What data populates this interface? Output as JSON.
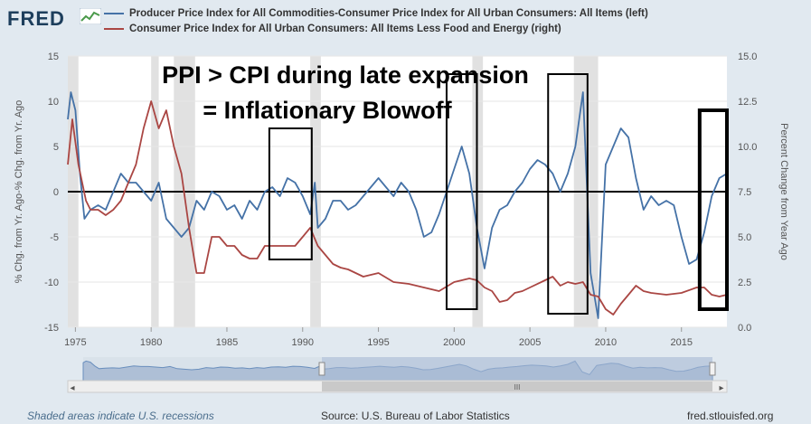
{
  "header": {
    "logo": "FRED",
    "logo_icon": "sparkline-icon"
  },
  "legend": [
    {
      "label": "Producer Price Index for All Commodities-Consumer Price Index for All Urban Consumers: All Items (left)",
      "color": "#4572a7"
    },
    {
      "label": "Consumer Price Index for All Urban Consumers: All Items Less Food and Energy (right)",
      "color": "#aa4643"
    }
  ],
  "annotation": {
    "line1": "PPI > CPI during late expansion",
    "line2": "= Inflationary Blowoff"
  },
  "navigator": {
    "left_arrow": "◂",
    "right_arrow": "▸",
    "grip": "III"
  },
  "footer": {
    "note": "Shaded areas indicate U.S. recessions",
    "source": "Source: U.S. Bureau of Labor Statistics",
    "site": "fred.stlouisfed.org"
  },
  "chart_data": {
    "type": "line",
    "ylabel": "% Chg. from Yr. Ago-% Chg. from Yr. Ago",
    "y2label": "Percent Change from Year Ago",
    "xlim": [
      1974.5,
      2018.0
    ],
    "ylim": [
      -15,
      15
    ],
    "y2lim": [
      0,
      15
    ],
    "x_ticks": [
      "1975",
      "1980",
      "1985",
      "1990",
      "1995",
      "2000",
      "2005",
      "2010",
      "2015"
    ],
    "y_ticks": [
      "15",
      "10",
      "5",
      "0",
      "-5",
      "-10",
      "-15"
    ],
    "y2_ticks": [
      "15.0",
      "12.5",
      "10.0",
      "7.5",
      "5.0",
      "2.5",
      "0.0"
    ],
    "recessions": [
      [
        1974.0,
        1975.2
      ],
      [
        1980.0,
        1980.5
      ],
      [
        1981.5,
        1982.9
      ],
      [
        1990.5,
        1991.2
      ],
      [
        2001.2,
        2001.9
      ],
      [
        2007.9,
        2009.5
      ]
    ],
    "highlight_boxes": [
      [
        1987.8,
        1990.6,
        7,
        -7.5
      ],
      [
        1999.5,
        2001.5,
        13,
        -13
      ],
      [
        2006.2,
        2008.8,
        13,
        -13.5
      ],
      [
        2016.2,
        2018.0,
        9,
        -13
      ]
    ],
    "series": [
      {
        "name": "Producer Price Index for All Commodities-Consumer Price Index for All Urban Consumers: All Items (left)",
        "axis": "left",
        "color": "#4572a7",
        "x": [
          1974.5,
          1974.7,
          1975.0,
          1975.3,
          1975.6,
          1976.0,
          1976.5,
          1977.0,
          1977.5,
          1978.0,
          1978.5,
          1979.0,
          1979.5,
          1980.0,
          1980.5,
          1981.0,
          1981.5,
          1982.0,
          1982.5,
          1983.0,
          1983.5,
          1984.0,
          1984.5,
          1985.0,
          1985.5,
          1986.0,
          1986.5,
          1987.0,
          1987.5,
          1988.0,
          1988.5,
          1989.0,
          1989.5,
          1990.0,
          1990.5,
          1990.8,
          1991.0,
          1991.5,
          1992.0,
          1992.5,
          1993.0,
          1993.5,
          1994.0,
          1994.5,
          1995.0,
          1995.5,
          1996.0,
          1996.5,
          1997.0,
          1997.5,
          1998.0,
          1998.5,
          1999.0,
          1999.5,
          2000.0,
          2000.5,
          2001.0,
          2001.5,
          2002.0,
          2002.5,
          2003.0,
          2003.5,
          2004.0,
          2004.5,
          2005.0,
          2005.5,
          2006.0,
          2006.5,
          2007.0,
          2007.5,
          2008.0,
          2008.5,
          2009.0,
          2009.5,
          2010.0,
          2010.5,
          2011.0,
          2011.5,
          2012.0,
          2012.5,
          2013.0,
          2013.5,
          2014.0,
          2014.5,
          2015.0,
          2015.5,
          2016.0,
          2016.5,
          2017.0,
          2017.5,
          2018.0
        ],
        "values": [
          8,
          11,
          9,
          2,
          -3,
          -2,
          -1.5,
          -2,
          0,
          2,
          1,
          1,
          0,
          -1,
          1,
          -3,
          -4,
          -5,
          -4,
          -1,
          -2,
          0,
          -0.5,
          -2,
          -1.5,
          -3,
          -1,
          -2,
          0,
          0.5,
          -0.5,
          1.5,
          1,
          -0.5,
          -2.5,
          1,
          -4,
          -3,
          -1,
          -1,
          -2,
          -1.5,
          -0.5,
          0.5,
          1.5,
          0.5,
          -0.5,
          1,
          0,
          -2,
          -5,
          -4.5,
          -2.5,
          0,
          2.5,
          5,
          2,
          -4,
          -8.5,
          -4,
          -2,
          -1.5,
          0,
          1,
          2.5,
          3.5,
          3,
          2,
          0,
          2,
          5,
          11,
          -9,
          -14,
          3,
          5,
          7,
          6,
          1.5,
          -2,
          -0.5,
          -1.5,
          -1,
          -1.5,
          -5,
          -8,
          -7.5,
          -4.5,
          -0.5,
          1.5,
          2
        ]
      },
      {
        "name": "Consumer Price Index for All Urban Consumers: All Items Less Food and Energy (right)",
        "axis": "right",
        "color": "#aa4643",
        "x": [
          1974.5,
          1974.8,
          1975.2,
          1975.7,
          1976.0,
          1976.5,
          1977.0,
          1977.5,
          1978.0,
          1978.5,
          1979.0,
          1979.5,
          1980.0,
          1980.5,
          1981.0,
          1981.5,
          1982.0,
          1982.5,
          1983.0,
          1983.5,
          1984.0,
          1984.5,
          1985.0,
          1985.5,
          1986.0,
          1986.5,
          1987.0,
          1987.5,
          1988.0,
          1988.5,
          1989.0,
          1989.5,
          1990.0,
          1990.5,
          1991.0,
          1991.5,
          1992.0,
          1992.5,
          1993.0,
          1994.0,
          1995.0,
          1996.0,
          1997.0,
          1998.0,
          1999.0,
          2000.0,
          2001.0,
          2001.5,
          2002.0,
          2002.5,
          2003.0,
          2003.5,
          2004.0,
          2004.5,
          2005.0,
          2006.0,
          2006.5,
          2007.0,
          2007.5,
          2008.0,
          2008.5,
          2009.0,
          2009.5,
          2010.0,
          2010.5,
          2011.0,
          2011.5,
          2012.0,
          2012.5,
          2013.0,
          2014.0,
          2015.0,
          2016.0,
          2016.5,
          2017.0,
          2017.5,
          2018.0
        ],
        "values": [
          9,
          11.5,
          9,
          7,
          6.5,
          6.5,
          6.2,
          6.5,
          7,
          8,
          9,
          11,
          12.5,
          11,
          12,
          10,
          8.5,
          5.5,
          3,
          3,
          5,
          5,
          4.5,
          4.5,
          4,
          3.8,
          3.8,
          4.5,
          4.5,
          4.5,
          4.5,
          4.5,
          5,
          5.5,
          4.5,
          4,
          3.5,
          3.3,
          3.2,
          2.8,
          3,
          2.5,
          2.4,
          2.2,
          2,
          2.5,
          2.7,
          2.6,
          2.2,
          2,
          1.4,
          1.5,
          1.9,
          2,
          2.2,
          2.6,
          2.8,
          2.3,
          2.5,
          2.4,
          2.5,
          1.8,
          1.7,
          1,
          0.7,
          1.3,
          1.8,
          2.3,
          2,
          1.9,
          1.8,
          1.9,
          2.2,
          2.2,
          1.8,
          1.7,
          1.8
        ]
      }
    ]
  }
}
